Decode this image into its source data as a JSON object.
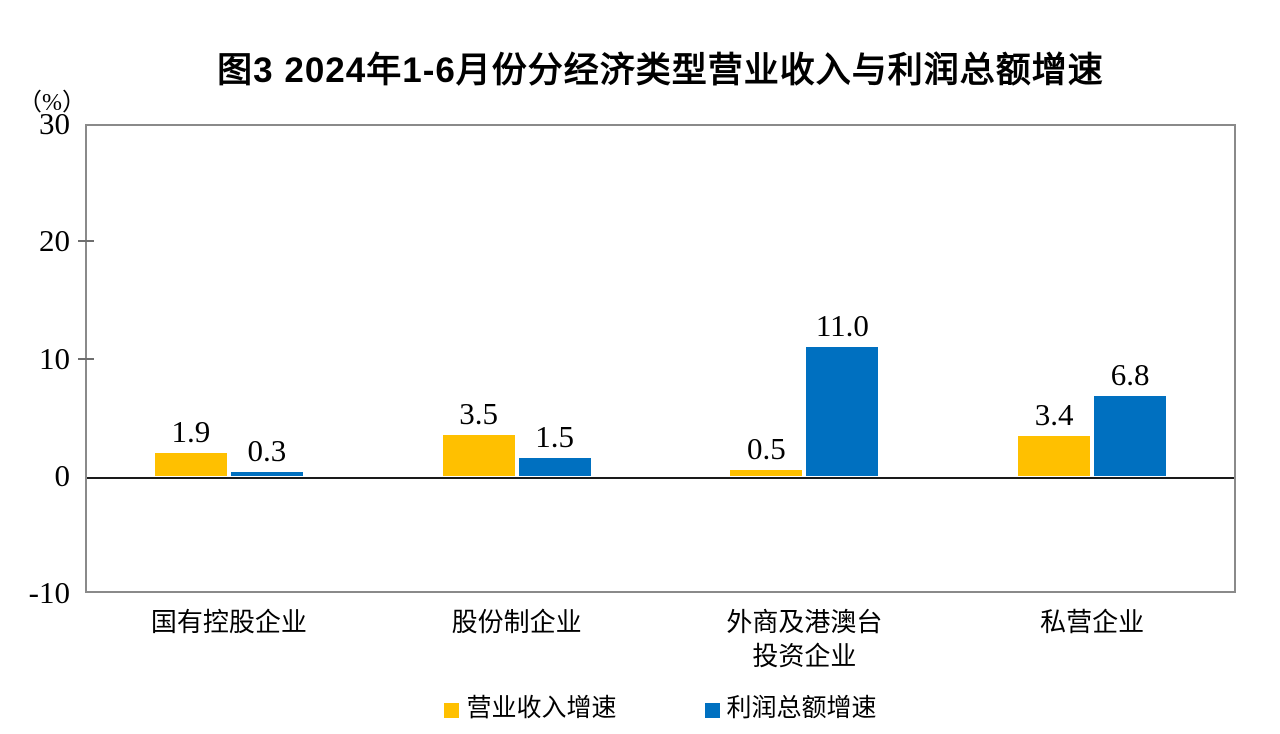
{
  "chart_data": {
    "type": "bar",
    "title": "图3 2024年1-6月份分经济类型营业收入与利润总额增速",
    "unit_label": "（%）",
    "categories": [
      "国有控股企业",
      "股份制企业",
      "外商及港澳台\n投资企业",
      "私营企业"
    ],
    "series": [
      {
        "name": "营业收入增速",
        "color": "#FFC000",
        "values": [
          1.9,
          3.5,
          0.5,
          3.4
        ]
      },
      {
        "name": "利润总额增速",
        "color": "#0070C0",
        "values": [
          0.3,
          1.5,
          11.0,
          6.8
        ]
      }
    ],
    "value_labels": [
      [
        "1.9",
        "3.5",
        "0.5",
        "3.4"
      ],
      [
        "0.3",
        "1.5",
        "11.0",
        "6.8"
      ]
    ],
    "ylim": [
      -10,
      30
    ],
    "yticks": [
      30,
      20,
      10,
      0,
      -10
    ],
    "grid": false,
    "legend_position": "bottom",
    "frame_color": "#8a8a8a",
    "zero_line_color": "#1a1a1a"
  }
}
